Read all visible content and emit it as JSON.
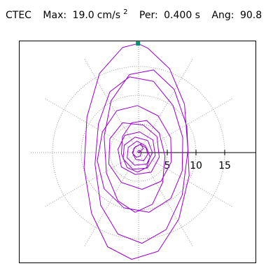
{
  "header": {
    "station": "CTEC",
    "max_label": "Max:",
    "max_value": "19.0",
    "max_unit": "cm/s",
    "max_unit_exp": "2",
    "period_label": "Per:",
    "period_value": "0.400 s",
    "angle_label": "Ang:",
    "angle_value": "90.8"
  },
  "chart_data": {
    "type": "polar-orbit",
    "title": "",
    "radial_ticks": [
      "5",
      "10",
      "15"
    ],
    "radial_values": [
      5,
      10,
      15
    ],
    "grid_rings": [
      5,
      10,
      15
    ],
    "grid": true,
    "max_value": 19.0,
    "max_marker": {
      "x": -0.1,
      "y": 19.0
    },
    "max_marker_color": "#009070",
    "trace_color": "#9900cc",
    "trace_points": [
      [
        0,
        0
      ],
      [
        0.8,
        0.7
      ],
      [
        0.4,
        1.5
      ],
      [
        -0.6,
        1.0
      ],
      [
        -1.1,
        0.0
      ],
      [
        -0.5,
        -1.2
      ],
      [
        0.9,
        -1.4
      ],
      [
        1.6,
        -0.3
      ],
      [
        1.2,
        1.2
      ],
      [
        -0.3,
        2.0
      ],
      [
        -1.8,
        0.9
      ],
      [
        -2.0,
        -0.9
      ],
      [
        -0.7,
        -2.2
      ],
      [
        1.4,
        -2.0
      ],
      [
        2.4,
        0.0
      ],
      [
        1.6,
        2.1
      ],
      [
        -0.6,
        2.7
      ],
      [
        -2.5,
        1.3
      ],
      [
        -2.7,
        -1.1
      ],
      [
        -1.0,
        -2.9
      ],
      [
        1.5,
        -2.7
      ],
      [
        2.9,
        -0.5
      ],
      [
        2.5,
        2.2
      ],
      [
        0.2,
        3.6
      ],
      [
        -2.4,
        3.0
      ],
      [
        -3.6,
        0.6
      ],
      [
        -3.0,
        -2.5
      ],
      [
        -0.6,
        -3.8
      ],
      [
        2.2,
        -3.4
      ],
      [
        3.6,
        -0.8
      ],
      [
        3.2,
        2.8
      ],
      [
        0.8,
        4.8
      ],
      [
        -2.8,
        5.2
      ],
      [
        -5.0,
        2.4
      ],
      [
        -5.2,
        -2.0
      ],
      [
        -3.0,
        -5.2
      ],
      [
        0.6,
        -6.4
      ],
      [
        3.9,
        -5.0
      ],
      [
        5.7,
        -1.6
      ],
      [
        5.6,
        2.6
      ],
      [
        3.4,
        6.4
      ],
      [
        -0.2,
        8.2
      ],
      [
        -3.8,
        7.3
      ],
      [
        -6.3,
        3.6
      ],
      [
        -7.2,
        -1.4
      ],
      [
        -6.0,
        -6.3
      ],
      [
        -2.6,
        -9.6
      ],
      [
        1.8,
        -10.4
      ],
      [
        5.6,
        -8.0
      ],
      [
        7.6,
        -3.2
      ],
      [
        7.7,
        2.6
      ],
      [
        6.0,
        8.2
      ],
      [
        2.6,
        12.4
      ],
      [
        -1.6,
        13.2
      ],
      [
        -5.0,
        10.6
      ],
      [
        -7.0,
        5.0
      ],
      [
        -7.6,
        -2.0
      ],
      [
        -6.6,
        -9.2
      ],
      [
        -3.6,
        -14.2
      ],
      [
        0.6,
        -15.8
      ],
      [
        4.8,
        -13.4
      ],
      [
        7.6,
        -7.4
      ],
      [
        8.6,
        0.4
      ],
      [
        8.0,
        8.4
      ],
      [
        5.4,
        14.6
      ],
      [
        1.6,
        18.2
      ],
      [
        -0.1,
        19.0
      ],
      [
        -2.8,
        18.3
      ],
      [
        -6.8,
        13.8
      ],
      [
        -9.0,
        6.2
      ],
      [
        -9.5,
        -2.6
      ],
      [
        -8.2,
        -10.6
      ],
      [
        -5.4,
        -16.4
      ],
      [
        -1.2,
        -18.6
      ],
      [
        3.4,
        -17.2
      ],
      [
        7.0,
        -11.6
      ],
      [
        8.8,
        -4.0
      ],
      [
        8.4,
        4.6
      ],
      [
        6.2,
        11.0
      ],
      [
        2.6,
        14.4
      ],
      [
        -1.6,
        13.6
      ],
      [
        -4.8,
        9.0
      ],
      [
        -6.0,
        2.8
      ],
      [
        -5.6,
        -3.6
      ],
      [
        -3.6,
        -8.4
      ],
      [
        -0.6,
        -10.4
      ],
      [
        2.4,
        -9.0
      ],
      [
        4.2,
        -5.2
      ],
      [
        4.6,
        -0.6
      ],
      [
        3.6,
        3.4
      ],
      [
        1.4,
        5.6
      ],
      [
        -1.2,
        5.2
      ],
      [
        -2.8,
        2.8
      ],
      [
        -3.0,
        -0.2
      ],
      [
        -2.0,
        -2.6
      ],
      [
        -0.2,
        -3.4
      ],
      [
        1.4,
        -2.6
      ],
      [
        2.0,
        -0.8
      ],
      [
        1.4,
        0.8
      ],
      [
        0.2,
        1.4
      ],
      [
        -0.8,
        0.8
      ],
      [
        -1.0,
        -0.2
      ],
      [
        -0.4,
        -0.8
      ],
      [
        0.3,
        -0.6
      ],
      [
        0.5,
        0.1
      ],
      [
        0.1,
        0.4
      ],
      [
        -0.2,
        0.1
      ],
      [
        0,
        0
      ]
    ]
  }
}
